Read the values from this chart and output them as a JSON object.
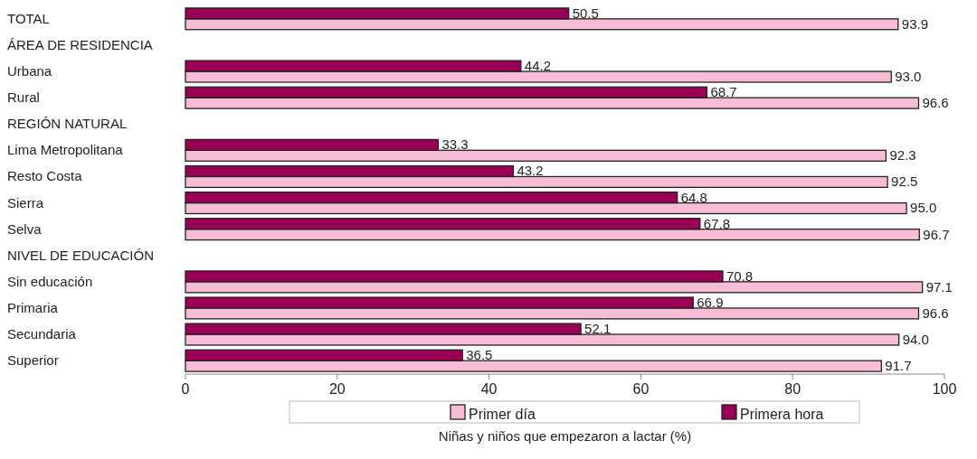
{
  "chart_data": {
    "type": "bar",
    "orientation": "horizontal",
    "xlabel": "Niñas y niños que empezaron a lactar (%)",
    "categories": [
      "TOTAL",
      "ÁREA DE RESIDENCIA",
      "Urbana",
      "Rural",
      "REGIÓN NATURAL",
      "Lima Metropolitana",
      "Resto Costa",
      "Sierra",
      "Selva",
      "NIVEL DE EDUCACIÓN",
      "Sin educación",
      "Primaria",
      "Secundaria",
      "Superior"
    ],
    "series": [
      {
        "name": "Primer día",
        "color": "#f7bdd6",
        "values": [
          93.9,
          null,
          93.0,
          96.6,
          null,
          92.3,
          92.5,
          95.0,
          96.7,
          null,
          97.1,
          96.6,
          94.0,
          91.7
        ],
        "value_labels": [
          "93.9",
          null,
          "93.0",
          "96.6",
          null,
          "92.3",
          "92.5",
          "95.0",
          "96.7",
          null,
          "97.1",
          "96.6",
          "94.0",
          "91.7"
        ]
      },
      {
        "name": "Primera hora",
        "color": "#990055",
        "values": [
          50.5,
          null,
          44.2,
          68.7,
          null,
          33.3,
          43.2,
          64.8,
          67.8,
          null,
          70.8,
          66.9,
          52.1,
          36.5
        ],
        "value_labels": [
          "50.5",
          null,
          "44.2",
          "68.7",
          null,
          "33.3",
          "43.2",
          "64.8",
          "67.8",
          null,
          "70.8",
          "66.9",
          "52.1",
          "36.5"
        ]
      }
    ],
    "xlim": [
      0,
      100
    ],
    "xticks": [
      0,
      20,
      40,
      60,
      80,
      100
    ],
    "legend": "bottom",
    "grid": false
  }
}
